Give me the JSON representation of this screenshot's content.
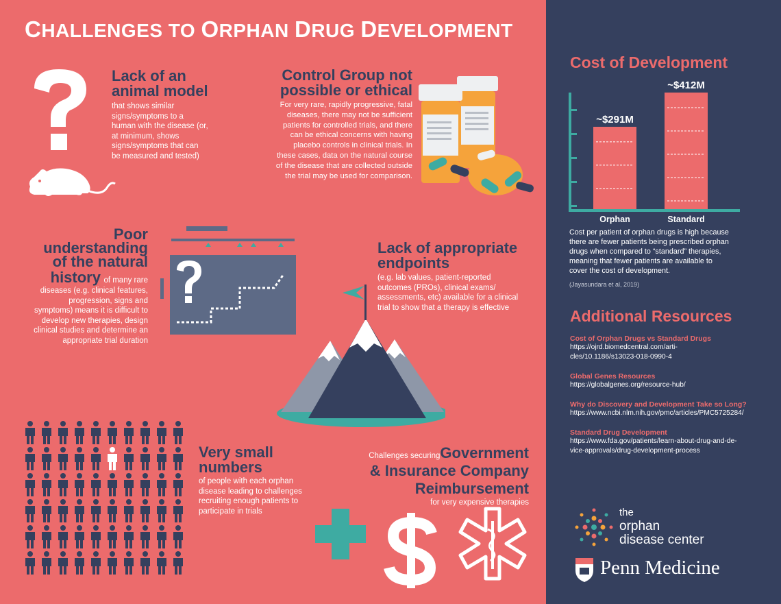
{
  "title": {
    "first": "C",
    "rest1": "HALLENGES TO ",
    "o": "O",
    "rest2": "RPHAN ",
    "d": "D",
    "rest3": "RUG ",
    "dv": "D",
    "rest4": "EVELOPMENT"
  },
  "animal": {
    "heading1": "Lack of an",
    "heading2": "animal model",
    "body1": "that shows similar",
    "body2": "signs/symptoms to a",
    "body3": "human with the disease (or,",
    "body4": "at minimum, shows",
    "body5": "signs/symptoms that can",
    "body6": "be measured and tested)"
  },
  "control": {
    "heading1": "Control Group not",
    "heading2": "possible or ethical",
    "body1": "For very rare, rapidly progressive, fatal",
    "body2": "diseases, there may not be sufficient",
    "body3": "patients for controlled trials, and there",
    "body4": "can be ethical concerns with having",
    "body5": "placebo controls in clinical trials. In",
    "body6": "these cases, data on the natural course",
    "body7": "of the disease that are collected outside",
    "body8": "the trial may be used for comparison."
  },
  "history": {
    "heading1": "Poor",
    "heading2": "understanding",
    "heading3": "of the natural",
    "heading4": "history",
    "body0": "of many rare",
    "body1": "diseases (e.g. clinical features,",
    "body2": "progression, signs and",
    "body3": "symptoms) means it is difficult to",
    "body4": "develop new therapies, design",
    "body5": "clinical studies and determine an",
    "body6": "appropriate trial duration"
  },
  "endpoints": {
    "heading1": "Lack of appropriate",
    "heading2": "endpoints",
    "body1": "(e.g. lab values, patient-reported",
    "body2": "outcomes (PROs), clinical exams/",
    "body3": "assessments, etc) available for a clinical",
    "body4": "trial to show that a therapy is effective"
  },
  "numbers": {
    "heading1": "Very small",
    "heading2": "numbers",
    "body1": "of people with each orphan",
    "body2": "disease leading to challenges",
    "body3": "recruiting enough patients to",
    "body4": "participate in trials"
  },
  "reimbursement": {
    "prefix": "Challenges securing",
    "heading1": "Government",
    "heading2": "& Insurance Company",
    "heading3": "Reimbursement",
    "body": "for very expensive therapies"
  },
  "cost": {
    "heading": "Cost of Development",
    "body1": "Cost per patient of orphan drugs is high because",
    "body2": "there are fewer patients being prescribed orphan",
    "body3": "drugs when compared to “standard” therapies,",
    "body4": "meaning that fewer patients are available to",
    "body5": "cover the cost of development.",
    "citation": "(Jayasundara et al, 2019)"
  },
  "chart_data": {
    "type": "bar",
    "categories": [
      "Orphan",
      "Standard"
    ],
    "values": [
      291,
      412
    ],
    "data_labels": [
      "~$291M",
      "~$412M"
    ],
    "units": "$M"
  },
  "resources": {
    "heading": "Additional Resources",
    "items": [
      {
        "title": "Cost of Orphan Drugs vs Standard Drugs",
        "url1": "https://ojrd.biomedcentral.com/arti-",
        "url2": "cles/10.1186/s13023-018-0990-4"
      },
      {
        "title": "Global Genes Resources",
        "url1": "https://globalgenes.org/resource-hub/",
        "url2": ""
      },
      {
        "title": "Why do Discovery and Development Take so Long?",
        "url1": "https://www.ncbi.nlm.nih.gov/pmc/articles/PMC5725284/",
        "url2": ""
      },
      {
        "title": "Standard Drug Development",
        "url1": "https://www.fda.gov/patients/learn-about-drug-and-de-",
        "url2": "vice-approvals/drug-development-process"
      }
    ]
  },
  "logos": {
    "odc1": "the",
    "odc2": "orphan",
    "odc3": "disease center",
    "penn": "Penn Medicine"
  },
  "colors": {
    "coral": "#ec6b6c",
    "navy": "#35405e",
    "teal": "#3eaba2",
    "orange": "#f5a33b"
  }
}
